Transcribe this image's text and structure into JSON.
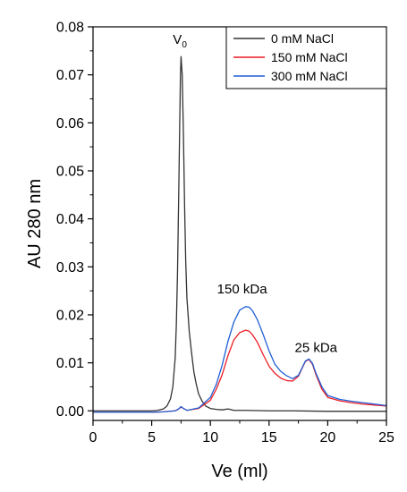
{
  "chart_data": {
    "type": "line",
    "xlabel": "Ve (ml)",
    "ylabel": "AU 280 nm",
    "xlim": [
      0,
      25
    ],
    "ylim": [
      -0.002,
      0.08
    ],
    "x_ticks": [
      "0",
      "5",
      "10",
      "15",
      "20",
      "25"
    ],
    "y_ticks": [
      "0.00",
      "0.01",
      "0.02",
      "0.03",
      "0.04",
      "0.05",
      "0.06",
      "0.07",
      "0.08"
    ],
    "grid": false,
    "legend_position": "top-right",
    "annotations": [
      {
        "text": "V",
        "sub": "0",
        "x": 7.4,
        "y": 0.0765
      },
      {
        "text": "150 kDa",
        "x": 12.7,
        "y": 0.0245
      },
      {
        "text": "25 kDa",
        "x": 19.0,
        "y": 0.0123
      }
    ],
    "series": [
      {
        "name": "0 mM NaCl",
        "color": "#333333",
        "x": [
          0,
          4,
          5,
          5.5,
          6,
          6.3,
          6.6,
          6.8,
          7.0,
          7.1,
          7.2,
          7.3,
          7.4,
          7.45,
          7.5,
          7.6,
          7.7,
          7.8,
          7.9,
          8.0,
          8.2,
          8.4,
          8.6,
          8.8,
          9.0,
          9.3,
          9.6,
          10.0,
          10.5,
          11.0,
          11.5,
          12.0,
          13.0,
          15.0,
          17.0,
          20.0,
          25.0
        ],
        "y": [
          0.0,
          0.0,
          0.0,
          0.0001,
          0.0004,
          0.001,
          0.0025,
          0.005,
          0.011,
          0.018,
          0.029,
          0.045,
          0.062,
          0.07,
          0.0738,
          0.07,
          0.058,
          0.043,
          0.031,
          0.0235,
          0.0165,
          0.012,
          0.008,
          0.0055,
          0.0035,
          0.002,
          0.001,
          0.0005,
          0.0003,
          0.0002,
          0.0004,
          0.0001,
          0.0001,
          0.0,
          0.0,
          -0.0001,
          -0.0001
        ]
      },
      {
        "name": "150 mM NaCl",
        "color": "#ee1c25",
        "x": [
          0,
          5,
          6,
          7,
          7.3,
          7.5,
          7.7,
          8,
          9,
          10,
          10.5,
          11,
          11.5,
          12,
          12.5,
          13,
          13.3,
          13.6,
          14,
          14.5,
          15,
          15.5,
          16,
          16.5,
          17,
          17.5,
          17.8,
          18.1,
          18.4,
          18.7,
          19,
          19.5,
          20,
          21,
          22,
          23,
          24,
          25
        ],
        "y": [
          -0.0003,
          -0.0003,
          -0.0002,
          0.0,
          0.0004,
          0.0008,
          0.0005,
          0.0001,
          0.0005,
          0.0022,
          0.0045,
          0.0075,
          0.0115,
          0.0148,
          0.0163,
          0.0168,
          0.0166,
          0.0158,
          0.0143,
          0.0117,
          0.0093,
          0.0078,
          0.0068,
          0.0063,
          0.0062,
          0.0072,
          0.0088,
          0.0103,
          0.0107,
          0.0097,
          0.0075,
          0.0045,
          0.0028,
          0.0021,
          0.0017,
          0.0014,
          0.0012,
          0.001
        ]
      },
      {
        "name": "300 mM NaCl",
        "color": "#1f5fd6",
        "x": [
          0,
          5,
          6,
          7,
          7.3,
          7.5,
          7.7,
          8,
          9,
          10,
          10.5,
          11,
          11.5,
          12,
          12.5,
          13,
          13.3,
          13.6,
          14,
          14.5,
          15,
          15.5,
          16,
          16.5,
          17,
          17.5,
          17.8,
          18.1,
          18.4,
          18.7,
          19,
          19.5,
          20,
          21,
          22,
          23,
          24,
          25
        ],
        "y": [
          -0.0003,
          -0.0003,
          -0.0002,
          0.0,
          0.0004,
          0.0009,
          0.0005,
          0.0001,
          0.0006,
          0.0028,
          0.0055,
          0.0095,
          0.0145,
          0.0185,
          0.021,
          0.0217,
          0.0216,
          0.0208,
          0.019,
          0.0159,
          0.0125,
          0.0097,
          0.0082,
          0.0073,
          0.0067,
          0.0074,
          0.0089,
          0.0104,
          0.0108,
          0.0099,
          0.0078,
          0.005,
          0.0032,
          0.0024,
          0.002,
          0.0017,
          0.0014,
          0.0011
        ]
      }
    ]
  }
}
